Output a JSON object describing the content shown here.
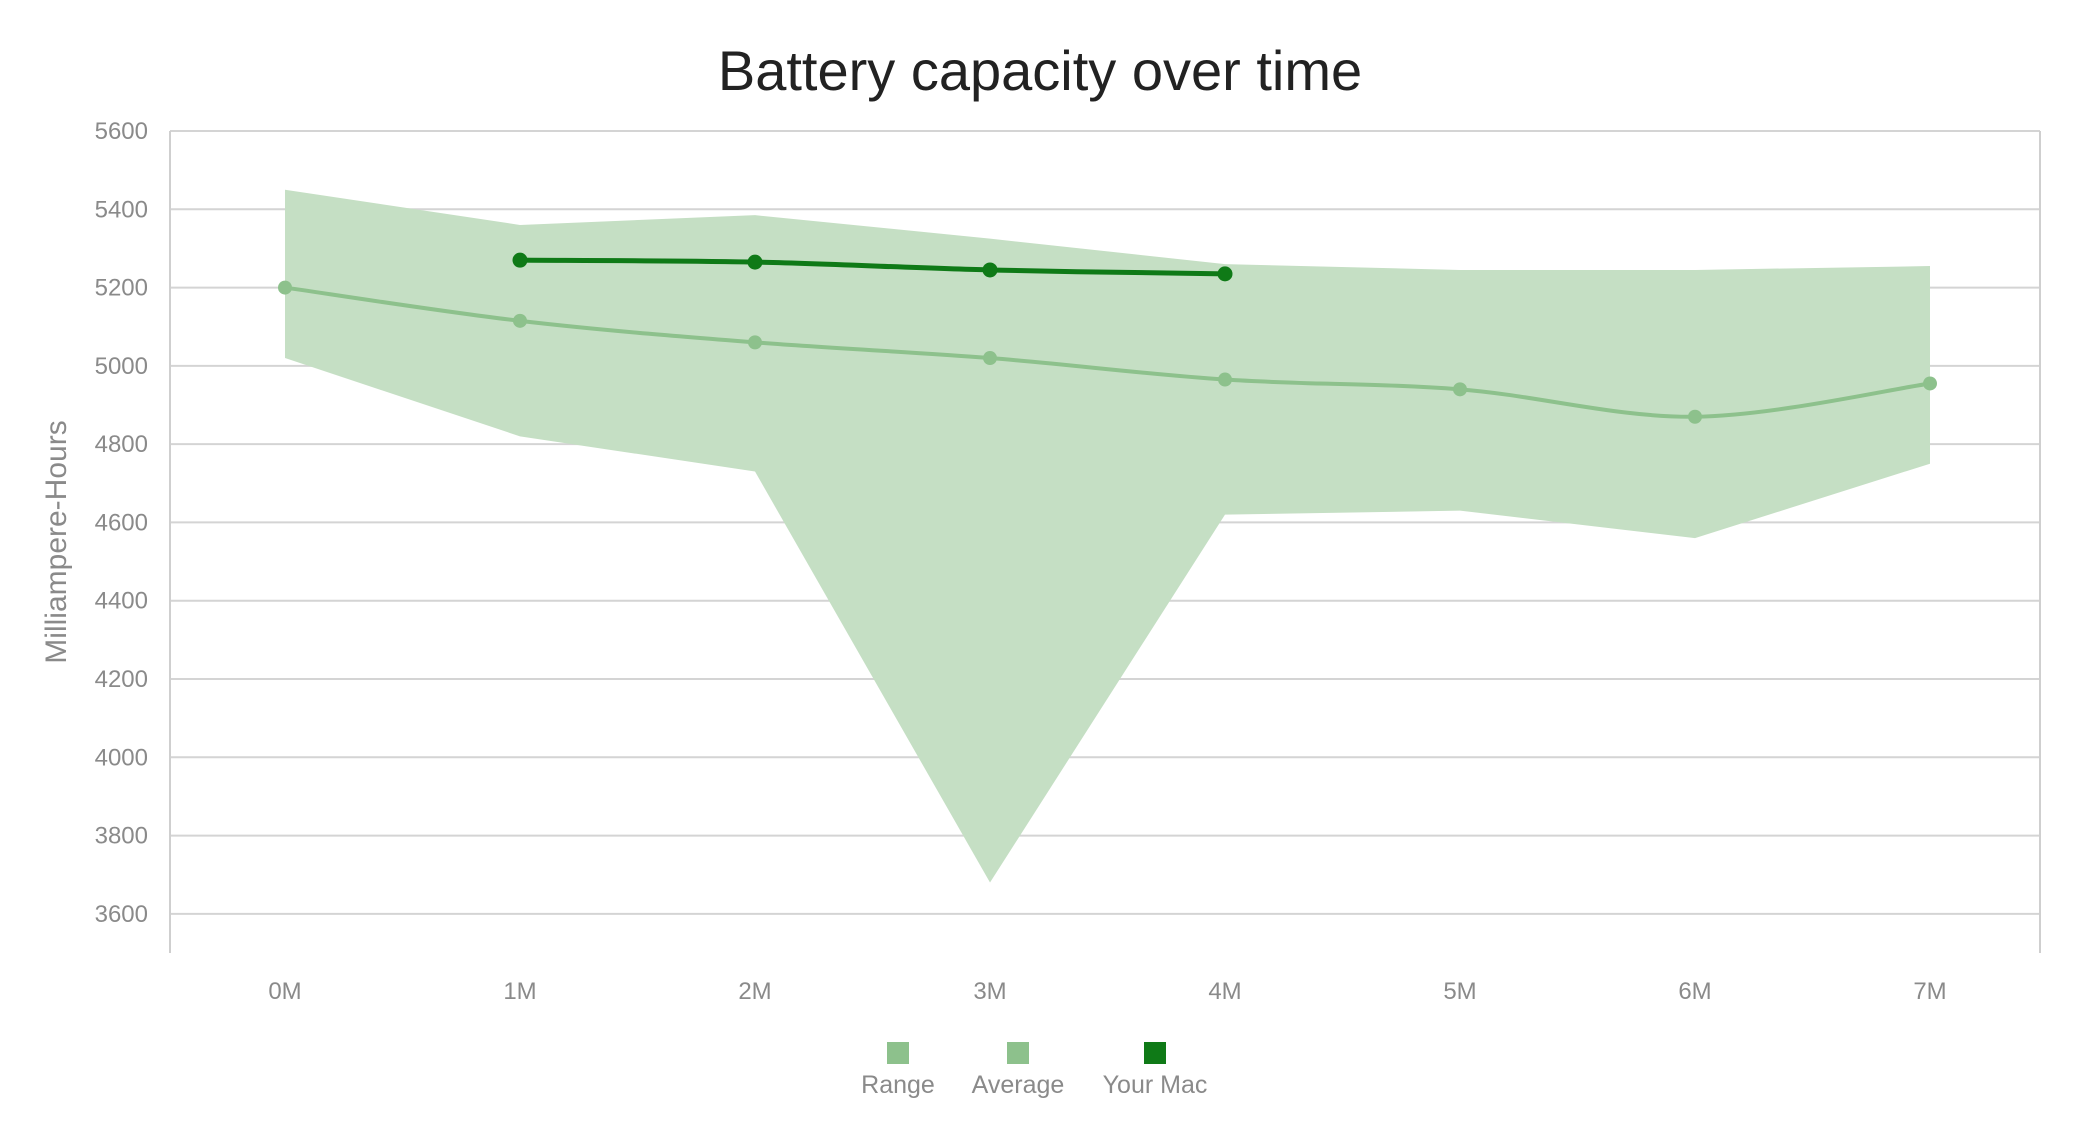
{
  "chart_data": {
    "type": "line",
    "title": "Battery capacity over time",
    "xlabel": "",
    "ylabel": "Milliampere-Hours",
    "categories": [
      "0M",
      "1M",
      "2M",
      "3M",
      "4M",
      "5M",
      "6M",
      "7M"
    ],
    "ylim": [
      3500,
      5600
    ],
    "yticks": [
      3600,
      3800,
      4000,
      4200,
      4400,
      4600,
      4800,
      5000,
      5200,
      5400,
      5600
    ],
    "grid": true,
    "legend_position": "bottom-center",
    "series": [
      {
        "name": "Range",
        "kind": "area-range",
        "color": "#c5dfc4",
        "low": [
          5020,
          4820,
          4730,
          3680,
          4620,
          4630,
          4560,
          4750
        ],
        "high": [
          5450,
          5360,
          5385,
          5325,
          5260,
          5245,
          5245,
          5255
        ]
      },
      {
        "name": "Average",
        "kind": "line",
        "color": "#8dc18c",
        "values": [
          5200,
          5115,
          5060,
          5020,
          4965,
          4940,
          4870,
          4955
        ]
      },
      {
        "name": "Your Mac",
        "kind": "line",
        "color": "#0f7a17",
        "values": [
          null,
          5270,
          5265,
          5245,
          5235,
          null,
          null,
          null
        ]
      }
    ]
  }
}
